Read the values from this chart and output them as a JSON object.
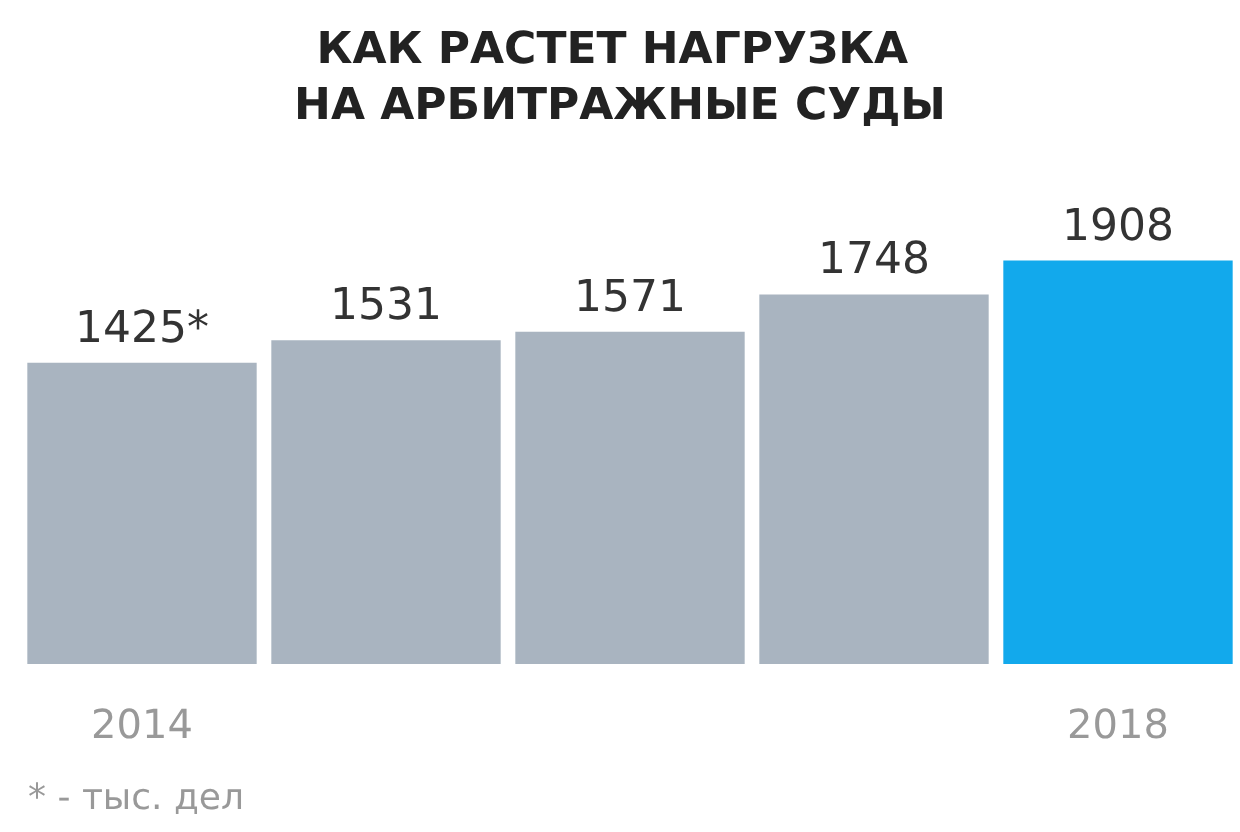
{
  "chart_data": {
    "type": "bar",
    "title": "КАК РАСТЕТ НАГРУЗКА НА АРБИТРАЖНЫЕ СУДЫ",
    "categories": [
      "2014",
      null,
      null,
      null,
      "2018"
    ],
    "values": [
      1425,
      1531,
      1571,
      1748,
      1908
    ],
    "value_labels": [
      "1425*",
      "1531",
      "1571",
      "1748",
      "1908"
    ],
    "colors": [
      "#a9b4c0",
      "#a9b4c0",
      "#a9b4c0",
      "#a9b4c0",
      "#12a9ec"
    ],
    "annotations": [
      "* - тыс. дел"
    ]
  }
}
